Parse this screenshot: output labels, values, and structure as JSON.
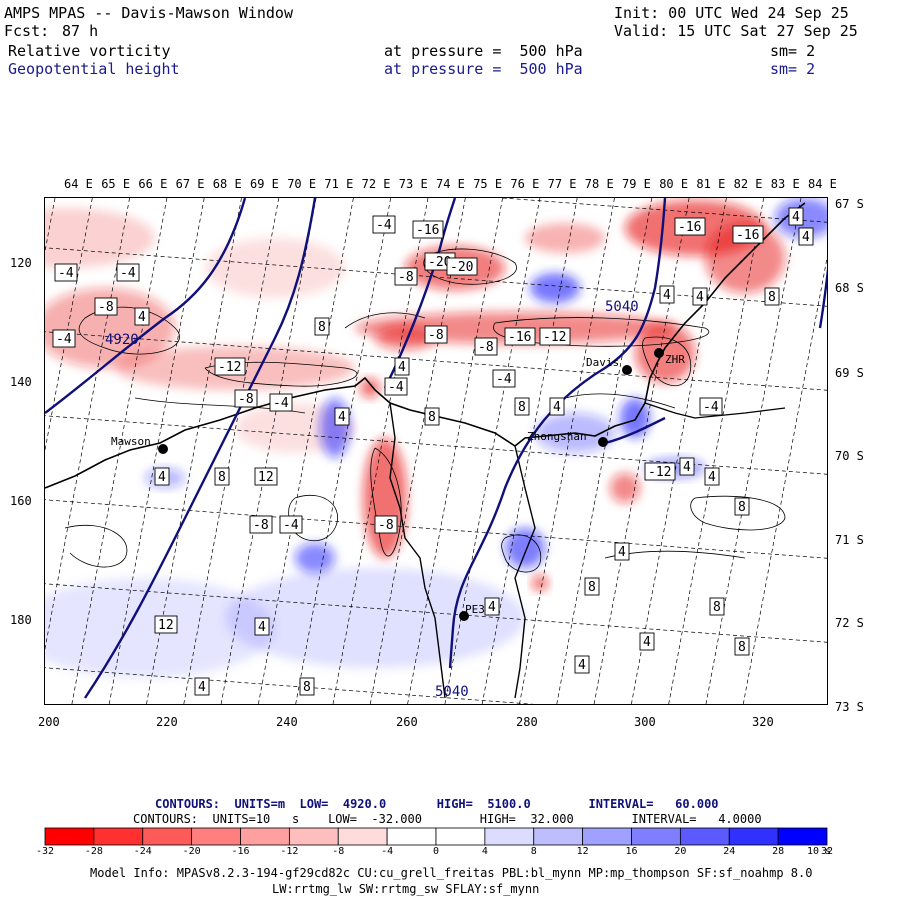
{
  "header": {
    "title": "AMPS MPAS -- Davis-Mawson Window",
    "fcst_label": "Fcst:",
    "fcst_value": "87 h",
    "init": "Init: 00 UTC Wed 24 Sep 25",
    "valid": "Valid: 15 UTC Sat 27 Sep 25",
    "field1": "Relative vorticity",
    "field1_level": "at pressure =  500 hPa",
    "field1_sm": "sm= 2",
    "field2": "Geopotential height",
    "field2_level": "at pressure =  500 hPa",
    "field2_sm": "sm= 2"
  },
  "map": {
    "lon_labels": [
      "64 E",
      "65 E",
      "66 E",
      "67 E",
      "68 E",
      "69 E",
      "70 E",
      "71 E",
      "72 E",
      "73 E",
      "74 E",
      "75 E",
      "76 E",
      "77 E",
      "78 E",
      "79 E",
      "80 E",
      "81 E",
      "82 E",
      "83 E",
      "84 E"
    ],
    "lat_labels": [
      "67 S",
      "68 S",
      "69 S",
      "70 S",
      "71 S",
      "72 S",
      "73 S"
    ],
    "x_ticks": [
      "200",
      "220",
      "240",
      "260",
      "280",
      "300",
      "320"
    ],
    "y_ticks": [
      "120",
      "140",
      "160",
      "180"
    ],
    "stations": [
      {
        "name": "Mawson"
      },
      {
        "name": "Davis"
      },
      {
        "name": "ZHR"
      },
      {
        "name": "Zhongshan"
      },
      {
        "name": "PE3"
      }
    ],
    "height_labels": [
      "4920",
      "5040",
      "5040"
    ],
    "vort_labels": [
      "-4",
      "-4",
      "-8",
      "-4",
      "-12",
      "-8",
      "-4",
      "-20",
      "-4",
      "-16",
      "-20",
      "-16",
      "-16",
      "-8",
      "-16",
      "-12",
      "-8",
      "-8",
      "-4",
      "-4",
      "-4",
      "4",
      "4",
      "8",
      "4",
      "4",
      "8",
      "4",
      "4",
      "8",
      "4",
      "8",
      "4",
      "12",
      "8",
      "4",
      "-4",
      "-8",
      "-8",
      "-12",
      "4",
      "4",
      "8",
      "4",
      "8",
      "4",
      "12",
      "4",
      "4",
      "8",
      "8",
      "4",
      "4",
      "8"
    ],
    "colors": {
      "neg": "#e81010",
      "pos": "#1a1aff",
      "line": "#000000",
      "height": "#10107a"
    }
  },
  "legend": {
    "line1": "CONTOURS:  UNITS=m  LOW=  4920.0       HIGH=  5100.0        INTERVAL=   60.000",
    "line2": "CONTOURS:  UNITS=10   s    LOW=  -32.000        HIGH=  32.000        INTERVAL=   4.0000",
    "ticks": [
      "-32",
      "-28",
      "-24",
      "-20",
      "-16",
      "-12",
      "-8",
      "-4",
      "0",
      "4",
      "8",
      "12",
      "16",
      "20",
      "24",
      "28",
      "32"
    ],
    "units": "10   s",
    "bins": [
      "#ff0000",
      "#ff3030",
      "#ff5a5a",
      "#ff7e7e",
      "#ffa0a0",
      "#ffbebe",
      "#ffdcdc",
      "#ffffff",
      "#ffffff",
      "#dcdcff",
      "#bebeff",
      "#a0a0ff",
      "#7e7eff",
      "#5a5aff",
      "#3030ff",
      "#0000ff"
    ]
  },
  "footer": {
    "line1": "Model Info: MPASv8.2.3-194-gf29cd82c CU:cu_grell_freitas PBL:bl_mynn MP:mp_thompson SF:sf_noahmp 8.0",
    "line2": "LW:rrtmg_lw SW:rrtmg_sw SFLAY:sf_mynn"
  }
}
